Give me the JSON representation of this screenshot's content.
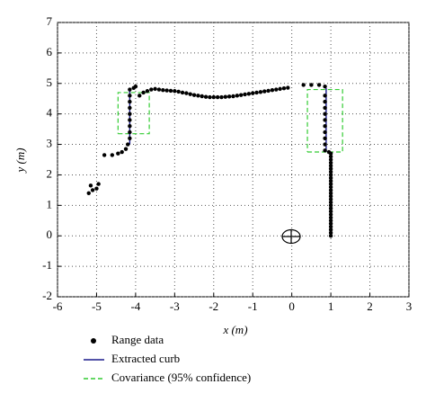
{
  "chart_data": {
    "type": "scatter",
    "x_label": "x (m)",
    "y_label": "y (m)",
    "xlim": [
      -6,
      3
    ],
    "ylim": [
      -2,
      7
    ],
    "xticks": [
      -6,
      -5,
      -4,
      -3,
      -2,
      -1,
      0,
      1,
      2,
      3
    ],
    "yticks": [
      -2,
      -1,
      0,
      1,
      2,
      3,
      4,
      5,
      6,
      7
    ],
    "grid": true,
    "series": [
      {
        "name": "Range data",
        "style": "markers",
        "color": "#000000",
        "x": [
          -5.2,
          -5.1,
          -5.15,
          -5.0,
          -4.95,
          -4.8,
          -4.6,
          -4.45,
          -4.35,
          -4.25,
          -4.2,
          -4.15,
          -4.15,
          -4.15,
          -4.15,
          -4.15,
          -4.15,
          -4.15,
          -4.15,
          -4.15,
          -4.05,
          -4.0,
          -3.9,
          -3.8,
          -3.7,
          -3.6,
          -3.5,
          -3.4,
          -3.3,
          -3.2,
          -3.1,
          -3.0,
          -2.9,
          -2.8,
          -2.7,
          -2.6,
          -2.5,
          -2.4,
          -2.3,
          -2.2,
          -2.1,
          -2.0,
          -1.9,
          -1.8,
          -1.7,
          -1.6,
          -1.5,
          -1.4,
          -1.3,
          -1.2,
          -1.1,
          -1.0,
          -0.9,
          -0.8,
          -0.7,
          -0.6,
          -0.5,
          -0.4,
          -0.3,
          -0.2,
          -0.1,
          0.3,
          0.5,
          0.7,
          0.85,
          0.85,
          0.85,
          0.85,
          0.85,
          0.85,
          0.85,
          0.85,
          0.85,
          0.85,
          0.85,
          0.95,
          1.0,
          1.0,
          1.0,
          1.0,
          1.0,
          1.0,
          1.0,
          1.0,
          1.0,
          1.0,
          1.0,
          1.0,
          1.0,
          1.0,
          1.0,
          1.0,
          1.0,
          1.0,
          1.0,
          1.0,
          1.0,
          1.0,
          1.0,
          1.0,
          1.0,
          1.0,
          1.0,
          1.0
        ],
        "y": [
          1.4,
          1.5,
          1.65,
          1.55,
          1.7,
          2.65,
          2.65,
          2.7,
          2.75,
          2.85,
          3.0,
          3.2,
          3.4,
          3.6,
          3.8,
          4.0,
          4.2,
          4.4,
          4.6,
          4.8,
          4.85,
          4.9,
          4.6,
          4.7,
          4.75,
          4.8,
          4.82,
          4.8,
          4.78,
          4.77,
          4.76,
          4.75,
          4.73,
          4.7,
          4.68,
          4.65,
          4.62,
          4.6,
          4.58,
          4.56,
          4.55,
          4.55,
          4.55,
          4.55,
          4.56,
          4.57,
          4.58,
          4.6,
          4.62,
          4.64,
          4.66,
          4.68,
          4.7,
          4.72,
          4.74,
          4.76,
          4.78,
          4.8,
          4.82,
          4.84,
          4.86,
          4.95,
          4.95,
          4.95,
          4.9,
          4.6,
          4.4,
          4.2,
          4.0,
          3.8,
          3.6,
          3.4,
          3.2,
          3.0,
          2.8,
          2.75,
          2.7,
          2.6,
          2.5,
          2.4,
          2.3,
          2.2,
          2.1,
          2.0,
          1.9,
          1.8,
          1.7,
          1.6,
          1.5,
          1.4,
          1.3,
          1.2,
          1.1,
          1.0,
          0.9,
          0.8,
          0.7,
          0.6,
          0.5,
          0.4,
          0.3,
          0.2,
          0.1,
          0.0
        ]
      },
      {
        "name": "Extracted curb",
        "style": "line",
        "color": "#1a1a8c",
        "x": [
          -4.15,
          -4.15,
          null,
          0.88,
          0.88
        ],
        "y": [
          3.0,
          4.8,
          null,
          2.75,
          4.85
        ]
      },
      {
        "name": "Covariance (95% confidence)",
        "style": "dashed",
        "color": "#33cc33",
        "x": [
          -4.45,
          -3.65,
          -3.65,
          -4.45,
          -4.45,
          null,
          0.4,
          1.3,
          1.3,
          0.4,
          0.4
        ],
        "y": [
          3.35,
          3.35,
          4.7,
          4.7,
          3.35,
          null,
          2.75,
          2.75,
          4.8,
          4.8,
          2.75
        ]
      }
    ]
  }
}
